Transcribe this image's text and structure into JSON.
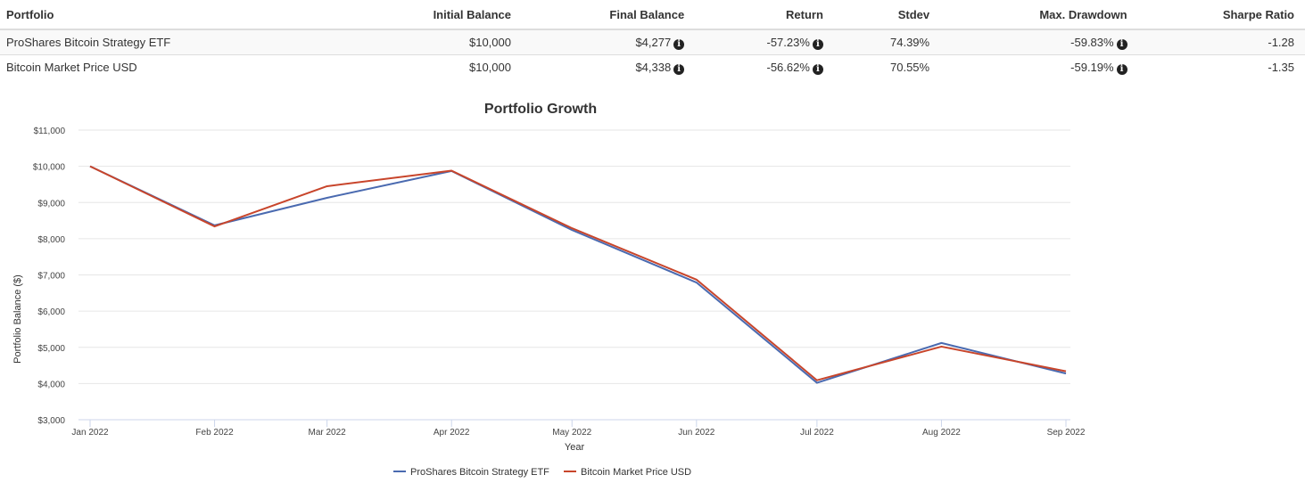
{
  "table": {
    "headers": [
      "Portfolio",
      "Initial Balance",
      "Final Balance",
      "Return",
      "Stdev",
      "Max. Drawdown",
      "Sharpe Ratio"
    ],
    "rows": [
      {
        "portfolio": "ProShares Bitcoin Strategy ETF",
        "initial": "$10,000",
        "final": "$4,277",
        "return": "-57.23%",
        "stdev": "74.39%",
        "drawdown": "-59.83%",
        "sharpe": "-1.28"
      },
      {
        "portfolio": "Bitcoin Market Price USD",
        "initial": "$10,000",
        "final": "$4,338",
        "return": "-56.62%",
        "stdev": "70.55%",
        "drawdown": "-59.19%",
        "sharpe": "-1.35"
      }
    ],
    "info_icon": "i"
  },
  "chart_data": {
    "type": "line",
    "title": "Portfolio Growth",
    "xlabel": "Year",
    "ylabel": "Portfolio Balance ($)",
    "x": [
      "Jan 2022",
      "Feb 2022",
      "Mar 2022",
      "Apr 2022",
      "May 2022",
      "Jun 2022",
      "Jul 2022",
      "Aug 2022",
      "Sep 2022"
    ],
    "x_days": [
      0,
      31,
      59,
      90,
      120,
      151,
      181,
      212,
      243
    ],
    "ylim": [
      3000,
      11000
    ],
    "yticks": [
      3000,
      4000,
      5000,
      6000,
      7000,
      8000,
      9000,
      10000,
      11000
    ],
    "ytick_labels": [
      "$3,000",
      "$4,000",
      "$5,000",
      "$6,000",
      "$7,000",
      "$8,000",
      "$9,000",
      "$10,000",
      "$11,000"
    ],
    "grid": true,
    "legend_position": "bottom",
    "series": [
      {
        "name": "ProShares Bitcoin Strategy ETF",
        "color": "#4a6ab0",
        "values": [
          10000,
          8370,
          9130,
          9870,
          8240,
          6790,
          4020,
          5120,
          4277
        ]
      },
      {
        "name": "Bitcoin Market Price USD",
        "color": "#c8452b",
        "values": [
          10000,
          8340,
          9450,
          9880,
          8290,
          6870,
          4090,
          5020,
          4338
        ]
      }
    ]
  }
}
